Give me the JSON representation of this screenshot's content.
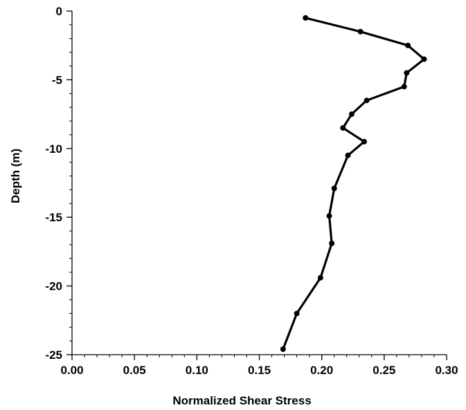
{
  "chart_data": {
    "type": "line",
    "title": "",
    "xlabel": "Normalized Shear Stress",
    "ylabel": "Depth (m)",
    "xlim": [
      0,
      0.3
    ],
    "ylim": [
      -25,
      0
    ],
    "x_ticks": [
      0,
      0.05,
      0.1,
      0.15,
      0.2,
      0.25,
      0.3
    ],
    "x_tick_labels": [
      "0.00",
      "0.05",
      "0.10",
      "0.15",
      "0.20",
      "0.25",
      "0.30"
    ],
    "y_ticks": [
      0,
      -5,
      -10,
      -15,
      -20,
      -25
    ],
    "y_tick_labels": [
      "0",
      "-5",
      "-10",
      "-15",
      "-20",
      "-25"
    ],
    "x_minor_step": 0.01,
    "y_minor_step": 1,
    "grid": false,
    "legend": "none",
    "series": [
      {
        "line_color": "#000000",
        "marker": "circle",
        "x": [
          0.187,
          0.231,
          0.269,
          0.282,
          0.268,
          0.266,
          0.236,
          0.224,
          0.217,
          0.234,
          0.221,
          0.21,
          0.206,
          0.208,
          0.199,
          0.18,
          0.169
        ],
        "y": [
          -0.5,
          -1.5,
          -2.5,
          -3.5,
          -4.5,
          -5.5,
          -6.5,
          -7.5,
          -8.5,
          -9.5,
          -10.5,
          -12.9,
          -14.9,
          -16.9,
          -19.4,
          -22.0,
          -24.6
        ]
      }
    ]
  }
}
